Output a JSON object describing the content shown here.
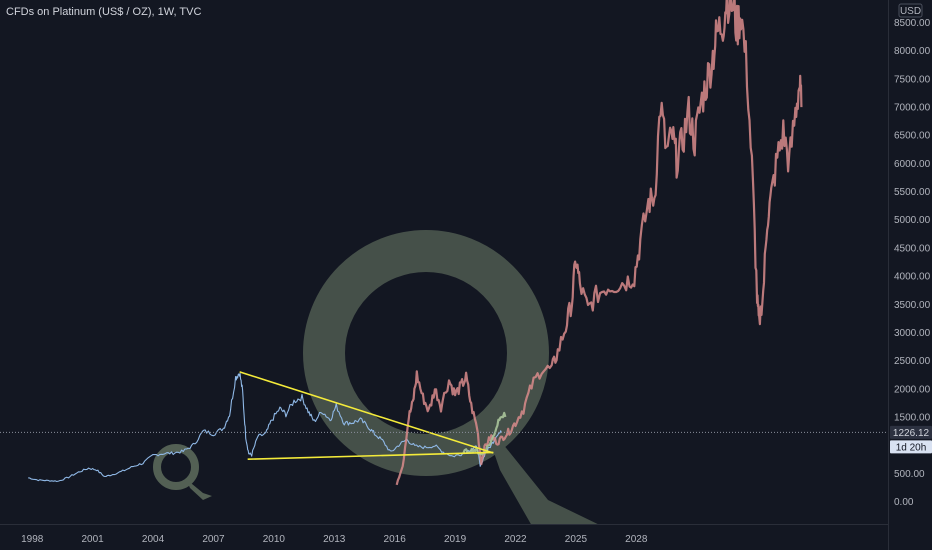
{
  "header": {
    "title": "CFDs on Platinum (US$ / OZ), 1W, TVC"
  },
  "price_axis": {
    "currency_label": "USD",
    "last_price": "1226.12",
    "countdown": "1d 20h"
  },
  "colors": {
    "background": "#131722",
    "history_line": "#8fb8e6",
    "projection": "#d98b8b",
    "projection_green": "#a9c49a",
    "trendline": "#f4eb3a",
    "watermark": "#5b6a5a",
    "last_price_badge": "#2c3140",
    "countdown_badge": "#d9e2f2"
  },
  "watermark": {
    "icon": "q-logo-icon"
  },
  "chart_data": {
    "type": "line",
    "title": "CFDs on Platinum (US$ / OZ), 1W, TVC",
    "xlabel": "",
    "ylabel": "",
    "x_ticks": [
      "1998",
      "2001",
      "2004",
      "2007",
      "2010",
      "2013",
      "2016",
      "2019",
      "2022",
      "2025",
      "2028"
    ],
    "y_ticks": [
      "0.00",
      "500.00",
      "1000.00",
      "1500.00",
      "2000.00",
      "2500.00",
      "3000.00",
      "3500.00",
      "4000.00",
      "4500.00",
      "5000.00",
      "5500.00",
      "6000.00",
      "6500.00",
      "7000.00",
      "7500.00",
      "8000.00",
      "8500.00"
    ],
    "xlim": [
      1996.4,
      2040.5
    ],
    "ylim": [
      -400,
      8900
    ],
    "last_price": 1226.12,
    "grid": false,
    "series": [
      {
        "role": "history",
        "points": [
          [
            1997.8,
            420
          ],
          [
            1998.3,
            380
          ],
          [
            1998.8,
            370
          ],
          [
            1999.3,
            360
          ],
          [
            1999.8,
            430
          ],
          [
            2000.3,
            520
          ],
          [
            2000.8,
            590
          ],
          [
            2001.2,
            560
          ],
          [
            2001.6,
            440
          ],
          [
            2002.0,
            480
          ],
          [
            2002.5,
            540
          ],
          [
            2003.0,
            620
          ],
          [
            2003.5,
            680
          ],
          [
            2004.0,
            820
          ],
          [
            2004.5,
            850
          ],
          [
            2005.0,
            860
          ],
          [
            2005.5,
            890
          ],
          [
            2006.0,
            1000
          ],
          [
            2006.5,
            1250
          ],
          [
            2007.0,
            1200
          ],
          [
            2007.5,
            1300
          ],
          [
            2007.8,
            1550
          ],
          [
            2008.1,
            2200
          ],
          [
            2008.3,
            2290
          ],
          [
            2008.45,
            1950
          ],
          [
            2008.6,
            1150
          ],
          [
            2008.75,
            850
          ],
          [
            2008.9,
            830
          ],
          [
            2009.2,
            1150
          ],
          [
            2009.6,
            1200
          ],
          [
            2009.9,
            1450
          ],
          [
            2010.3,
            1650
          ],
          [
            2010.6,
            1550
          ],
          [
            2011.0,
            1780
          ],
          [
            2011.4,
            1850
          ],
          [
            2011.7,
            1600
          ],
          [
            2012.0,
            1420
          ],
          [
            2012.4,
            1600
          ],
          [
            2012.8,
            1450
          ],
          [
            2013.1,
            1700
          ],
          [
            2013.5,
            1390
          ],
          [
            2013.9,
            1400
          ],
          [
            2014.3,
            1450
          ],
          [
            2014.7,
            1320
          ],
          [
            2015.0,
            1200
          ],
          [
            2015.4,
            1080
          ],
          [
            2015.8,
            870
          ],
          [
            2016.2,
            1000
          ],
          [
            2016.6,
            1100
          ],
          [
            2017.0,
            980
          ],
          [
            2017.5,
            960
          ],
          [
            2018.0,
            990
          ],
          [
            2018.4,
            880
          ],
          [
            2018.9,
            800
          ],
          [
            2019.3,
            840
          ],
          [
            2019.8,
            930
          ],
          [
            2020.1,
            970
          ],
          [
            2020.25,
            620
          ],
          [
            2020.5,
            860
          ],
          [
            2020.8,
            1000
          ],
          [
            2021.1,
            1200
          ],
          [
            2021.3,
            1226
          ]
        ]
      },
      {
        "role": "projection",
        "points": [
          [
            2016.1,
            320
          ],
          [
            2016.4,
            650
          ],
          [
            2016.7,
            1500
          ],
          [
            2016.9,
            1750
          ],
          [
            2017.1,
            2250
          ],
          [
            2017.4,
            1850
          ],
          [
            2017.7,
            1600
          ],
          [
            2018.0,
            2000
          ],
          [
            2018.3,
            1700
          ],
          [
            2018.7,
            2150
          ],
          [
            2019.0,
            1900
          ],
          [
            2019.3,
            2050
          ],
          [
            2019.55,
            2200
          ],
          [
            2019.8,
            1700
          ],
          [
            2020.1,
            1300
          ],
          [
            2020.3,
            700
          ],
          [
            2020.5,
            1000
          ],
          [
            2020.8,
            1150
          ],
          [
            2021.1,
            1050
          ],
          [
            2021.4,
            1150
          ],
          [
            2021.7,
            1250
          ],
          [
            2022.0,
            1400
          ],
          [
            2022.4,
            1650
          ],
          [
            2022.8,
            2050
          ],
          [
            2023.3,
            2350
          ],
          [
            2023.8,
            2350
          ],
          [
            2024.1,
            2650
          ],
          [
            2024.5,
            3100
          ],
          [
            2024.8,
            3550
          ],
          [
            2025.0,
            4300
          ],
          [
            2025.2,
            3850
          ],
          [
            2025.6,
            3400
          ],
          [
            2026.0,
            3650
          ],
          [
            2026.5,
            3800
          ],
          [
            2027.0,
            3850
          ],
          [
            2027.5,
            3900
          ],
          [
            2027.9,
            4000
          ],
          [
            2028.2,
            4600
          ],
          [
            2028.6,
            5300
          ],
          [
            2028.9,
            5400
          ],
          [
            2029.2,
            7050
          ],
          [
            2029.5,
            6200
          ],
          [
            2029.8,
            6500
          ],
          [
            2030.0,
            6050
          ],
          [
            2030.3,
            6400
          ],
          [
            2030.6,
            6900
          ],
          [
            2030.9,
            6400
          ],
          [
            2031.2,
            7050
          ],
          [
            2031.5,
            7450
          ],
          [
            2031.8,
            7900
          ],
          [
            2032.0,
            8300
          ],
          [
            2032.3,
            8500
          ],
          [
            2032.5,
            8950
          ],
          [
            2032.8,
            8800
          ],
          [
            2033.0,
            8400
          ],
          [
            2033.2,
            8700
          ],
          [
            2033.5,
            7600
          ],
          [
            2033.8,
            5500
          ],
          [
            2034.0,
            3600
          ],
          [
            2034.1,
            3150
          ],
          [
            2034.3,
            3700
          ],
          [
            2034.5,
            5000
          ],
          [
            2034.7,
            5400
          ],
          [
            2035.0,
            6100
          ],
          [
            2035.3,
            6550
          ],
          [
            2035.6,
            6000
          ],
          [
            2035.9,
            6900
          ],
          [
            2036.1,
            7400
          ],
          [
            2036.2,
            7000
          ]
        ]
      },
      {
        "role": "projection-highlight",
        "points": [
          [
            2019.4,
            880
          ],
          [
            2019.7,
            900
          ],
          [
            2019.95,
            920
          ],
          [
            2020.15,
            880
          ],
          [
            2020.35,
            830
          ],
          [
            2020.6,
            960
          ],
          [
            2020.85,
            1100
          ],
          [
            2021.05,
            1320
          ],
          [
            2021.25,
            1550
          ],
          [
            2021.5,
            1500
          ]
        ]
      }
    ],
    "trendlines": [
      {
        "role": "upper",
        "from": [
          2008.3,
          2300
        ],
        "to": [
          2020.9,
          860
        ]
      },
      {
        "role": "lower",
        "from": [
          2008.7,
          750
        ],
        "to": [
          2020.9,
          870
        ]
      }
    ]
  }
}
